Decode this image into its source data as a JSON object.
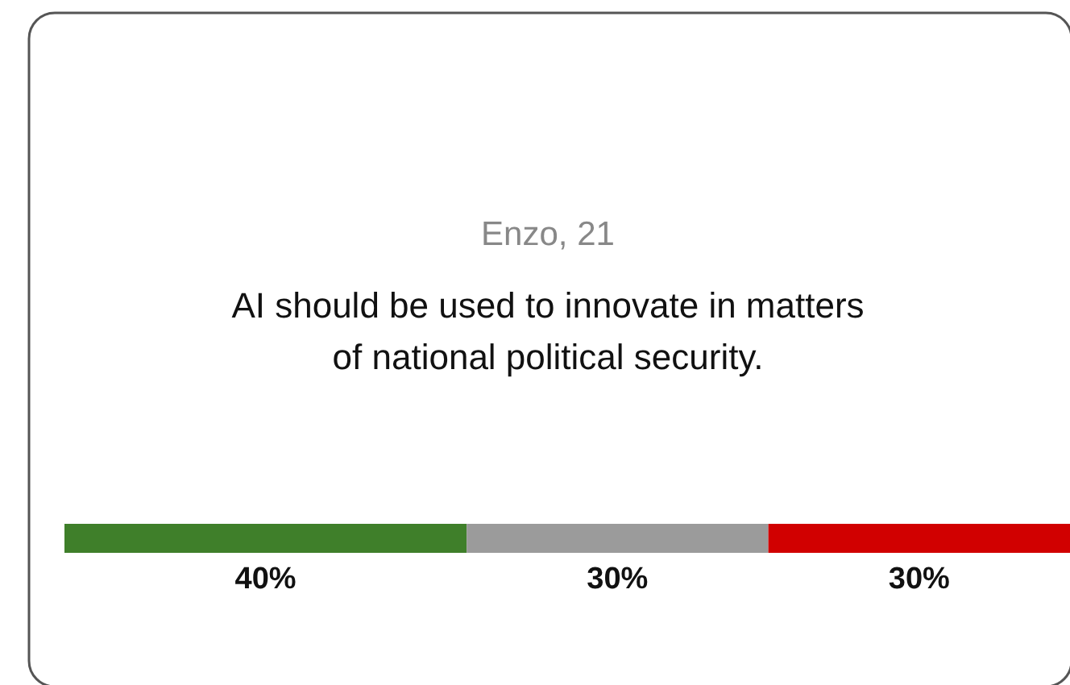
{
  "chart_data": {
    "type": "bar",
    "title": "Enzo, 21",
    "subtitle": "AI should be used to innovate in matters of national political security.",
    "orientation": "horizontal",
    "stacked": true,
    "categories": [
      null
    ],
    "series": [
      {
        "color": "#3f7f2a",
        "values": [
          40
        ],
        "value_labels": [
          "40%"
        ]
      },
      {
        "color": "#9b9b9b",
        "values": [
          30
        ],
        "value_labels": [
          "30%"
        ]
      },
      {
        "color": "#d10000",
        "values": [
          30
        ],
        "value_labels": [
          "30%"
        ]
      }
    ]
  }
}
